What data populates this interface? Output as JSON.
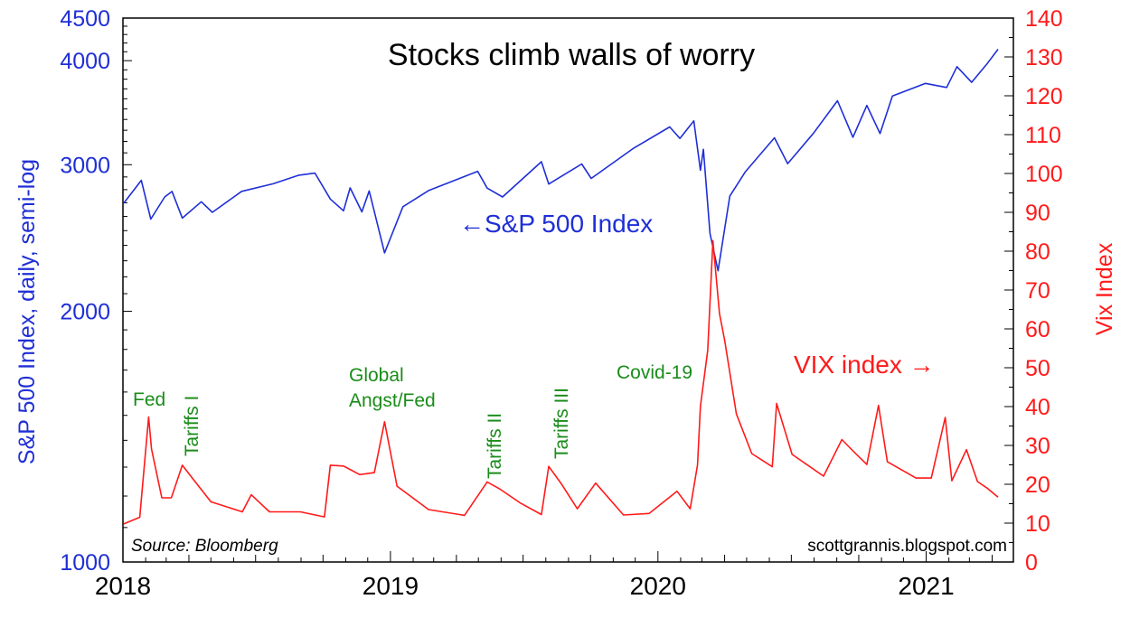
{
  "chart_data": {
    "type": "line",
    "title": "Stocks climb walls of worry",
    "ylabel_left": "S&P 500 Index, daily, semi-log",
    "ylabel_right": "Vix Index",
    "y_left_scale": "log",
    "y_left_range": [
      1000,
      4500
    ],
    "y_left_ticks": [
      "4500",
      "4000",
      "3000",
      "2000",
      "1000"
    ],
    "y_right_range": [
      0,
      140
    ],
    "y_right_ticks": [
      "140",
      "130",
      "120",
      "110",
      "100",
      "90",
      "80",
      "70",
      "60",
      "50",
      "40",
      "30",
      "20",
      "10",
      "0"
    ],
    "x_range": [
      "2018-01-01",
      "2021-04-30"
    ],
    "x_ticks": [
      "2018",
      "2019",
      "2020",
      "2021"
    ],
    "grid": false,
    "series": [
      {
        "name": "S&P 500 Index",
        "axis": "left",
        "color": "#1f2fd6",
        "points": [
          [
            "2018-01-02",
            2696
          ],
          [
            "2018-01-26",
            2873
          ],
          [
            "2018-02-08",
            2581
          ],
          [
            "2018-02-27",
            2744
          ],
          [
            "2018-03-09",
            2786
          ],
          [
            "2018-03-23",
            2588
          ],
          [
            "2018-04-18",
            2708
          ],
          [
            "2018-05-03",
            2630
          ],
          [
            "2018-06-12",
            2787
          ],
          [
            "2018-07-25",
            2846
          ],
          [
            "2018-08-29",
            2914
          ],
          [
            "2018-09-20",
            2931
          ],
          [
            "2018-10-11",
            2728
          ],
          [
            "2018-10-29",
            2641
          ],
          [
            "2018-11-07",
            2814
          ],
          [
            "2018-11-23",
            2633
          ],
          [
            "2018-12-03",
            2790
          ],
          [
            "2018-12-24",
            2351
          ],
          [
            "2019-01-18",
            2671
          ],
          [
            "2019-02-22",
            2793
          ],
          [
            "2019-04-30",
            2946
          ],
          [
            "2019-05-13",
            2812
          ],
          [
            "2019-06-03",
            2744
          ],
          [
            "2019-07-26",
            3025
          ],
          [
            "2019-08-05",
            2844
          ],
          [
            "2019-09-19",
            3006
          ],
          [
            "2019-10-02",
            2888
          ],
          [
            "2019-11-29",
            3141
          ],
          [
            "2020-01-17",
            3330
          ],
          [
            "2020-01-31",
            3226
          ],
          [
            "2020-02-19",
            3386
          ],
          [
            "2020-02-28",
            2954
          ],
          [
            "2020-03-03",
            3130
          ],
          [
            "2020-03-12",
            2480
          ],
          [
            "2020-03-23",
            2237
          ],
          [
            "2020-04-08",
            2750
          ],
          [
            "2020-04-29",
            2940
          ],
          [
            "2020-06-08",
            3232
          ],
          [
            "2020-06-26",
            3009
          ],
          [
            "2020-07-31",
            3271
          ],
          [
            "2020-09-02",
            3580
          ],
          [
            "2020-09-23",
            3237
          ],
          [
            "2020-10-12",
            3534
          ],
          [
            "2020-10-30",
            3270
          ],
          [
            "2020-11-16",
            3627
          ],
          [
            "2020-12-31",
            3756
          ],
          [
            "2021-01-29",
            3714
          ],
          [
            "2021-02-12",
            3934
          ],
          [
            "2021-03-04",
            3768
          ],
          [
            "2021-03-26",
            3975
          ],
          [
            "2021-04-09",
            4128
          ]
        ]
      },
      {
        "name": "VIX index",
        "axis": "right",
        "color": "#ff1a1a",
        "points": [
          [
            "2018-01-02",
            9.8
          ],
          [
            "2018-01-24",
            11.5
          ],
          [
            "2018-02-05",
            37.3
          ],
          [
            "2018-02-09",
            29.1
          ],
          [
            "2018-02-23",
            16.5
          ],
          [
            "2018-03-08",
            16.5
          ],
          [
            "2018-03-23",
            24.9
          ],
          [
            "2018-04-06",
            21.5
          ],
          [
            "2018-05-01",
            15.5
          ],
          [
            "2018-06-13",
            12.9
          ],
          [
            "2018-06-25",
            17.3
          ],
          [
            "2018-07-20",
            12.9
          ],
          [
            "2018-08-31",
            12.9
          ],
          [
            "2018-10-03",
            11.6
          ],
          [
            "2018-10-11",
            24.9
          ],
          [
            "2018-10-29",
            24.7
          ],
          [
            "2018-11-20",
            22.5
          ],
          [
            "2018-12-10",
            23.0
          ],
          [
            "2018-12-24",
            36.1
          ],
          [
            "2019-01-10",
            19.5
          ],
          [
            "2019-02-22",
            13.5
          ],
          [
            "2019-04-12",
            12.0
          ],
          [
            "2019-05-13",
            20.6
          ],
          [
            "2019-05-31",
            18.7
          ],
          [
            "2019-06-28",
            15.1
          ],
          [
            "2019-07-26",
            12.2
          ],
          [
            "2019-08-05",
            24.6
          ],
          [
            "2019-08-23",
            19.9
          ],
          [
            "2019-09-13",
            13.7
          ],
          [
            "2019-10-08",
            20.3
          ],
          [
            "2019-11-15",
            12.1
          ],
          [
            "2019-12-20",
            12.5
          ],
          [
            "2020-01-27",
            18.2
          ],
          [
            "2020-02-14",
            13.7
          ],
          [
            "2020-02-24",
            25.0
          ],
          [
            "2020-02-28",
            40.1
          ],
          [
            "2020-03-09",
            54.5
          ],
          [
            "2020-03-16",
            82.7
          ],
          [
            "2020-03-25",
            63.9
          ],
          [
            "2020-04-01",
            57.1
          ],
          [
            "2020-04-17",
            38.1
          ],
          [
            "2020-05-08",
            27.9
          ],
          [
            "2020-06-05",
            24.5
          ],
          [
            "2020-06-11",
            40.8
          ],
          [
            "2020-07-02",
            27.7
          ],
          [
            "2020-08-14",
            22.1
          ],
          [
            "2020-09-08",
            31.5
          ],
          [
            "2020-09-23",
            28.6
          ],
          [
            "2020-10-12",
            25.1
          ],
          [
            "2020-10-28",
            40.3
          ],
          [
            "2020-11-09",
            25.8
          ],
          [
            "2020-12-18",
            21.6
          ],
          [
            "2021-01-08",
            21.6
          ],
          [
            "2021-01-27",
            37.2
          ],
          [
            "2021-02-05",
            20.9
          ],
          [
            "2021-02-25",
            28.9
          ],
          [
            "2021-03-12",
            20.7
          ],
          [
            "2021-03-26",
            18.9
          ],
          [
            "2021-04-09",
            16.7
          ]
        ]
      }
    ],
    "annotations": [
      {
        "text": "Fed",
        "date": "2018-02-05"
      },
      {
        "text": "Tariffs I",
        "date": "2018-03-23"
      },
      {
        "text": "Global Angst/Fed",
        "date": "2018-12-24"
      },
      {
        "text": "Tariffs II",
        "date": "2019-05-13"
      },
      {
        "text": "Tariffs III",
        "date": "2019-08-05"
      },
      {
        "text": "Covid-19",
        "date": "2020-03-16"
      }
    ],
    "series_labels": {
      "sp500": "←S&P 500 Index",
      "vix": "VIX index →"
    },
    "source": "Source: Bloomberg",
    "credit": "scottgrannis.blogspot.com"
  }
}
